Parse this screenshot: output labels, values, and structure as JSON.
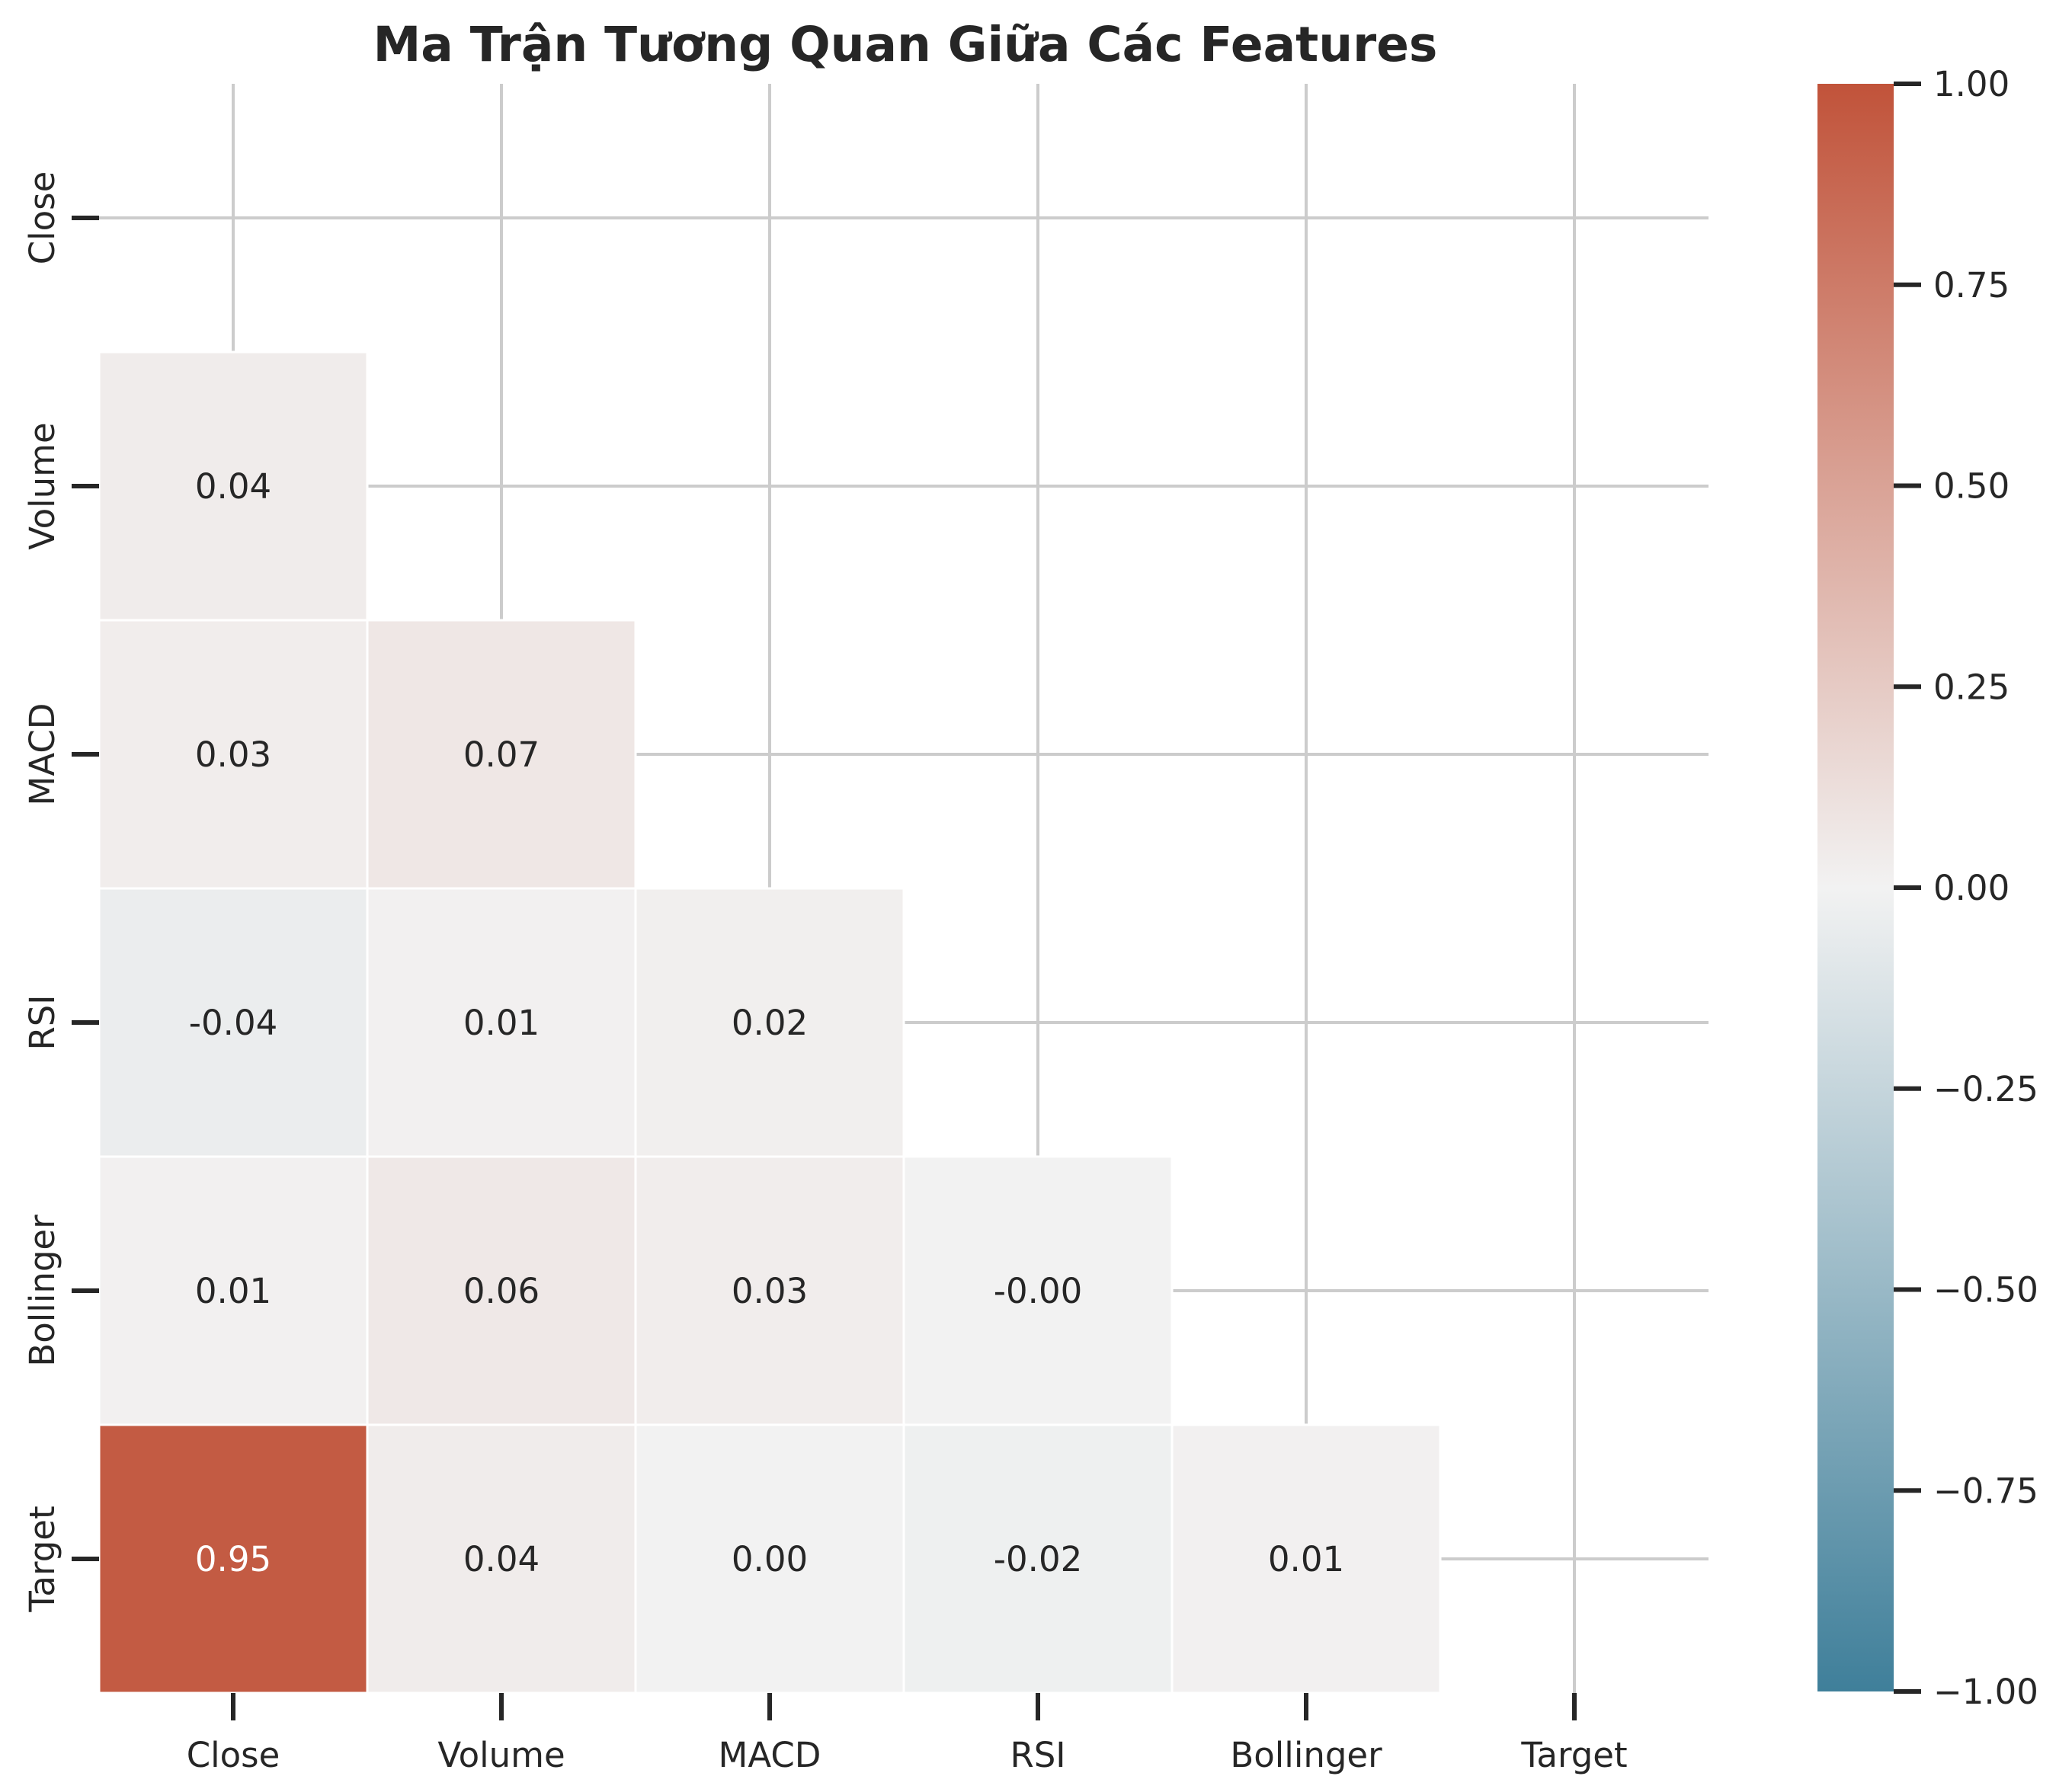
{
  "chart_data": {
    "type": "heatmap",
    "title": "Ma Trận Tương Quan Giữa Các Features",
    "categories": [
      "Close",
      "Volume",
      "MACD",
      "RSI",
      "Bollinger",
      "Target"
    ],
    "mask": "upper-triangle-including-diagonal",
    "cells": [
      {
        "row": "Volume",
        "col": "Close",
        "value": 0.04,
        "label": "0.04"
      },
      {
        "row": "MACD",
        "col": "Close",
        "value": 0.03,
        "label": "0.03"
      },
      {
        "row": "MACD",
        "col": "Volume",
        "value": 0.07,
        "label": "0.07"
      },
      {
        "row": "RSI",
        "col": "Close",
        "value": -0.04,
        "label": "-0.04"
      },
      {
        "row": "RSI",
        "col": "Volume",
        "value": 0.01,
        "label": "0.01"
      },
      {
        "row": "RSI",
        "col": "MACD",
        "value": 0.02,
        "label": "0.02"
      },
      {
        "row": "Bollinger",
        "col": "Close",
        "value": 0.01,
        "label": "0.01"
      },
      {
        "row": "Bollinger",
        "col": "Volume",
        "value": 0.06,
        "label": "0.06"
      },
      {
        "row": "Bollinger",
        "col": "MACD",
        "value": 0.03,
        "label": "0.03"
      },
      {
        "row": "Bollinger",
        "col": "RSI",
        "value": -0.0,
        "label": "-0.00"
      },
      {
        "row": "Target",
        "col": "Close",
        "value": 0.95,
        "label": "0.95"
      },
      {
        "row": "Target",
        "col": "Volume",
        "value": 0.04,
        "label": "0.04"
      },
      {
        "row": "Target",
        "col": "MACD",
        "value": 0.0,
        "label": "0.00"
      },
      {
        "row": "Target",
        "col": "RSI",
        "value": -0.02,
        "label": "-0.02"
      },
      {
        "row": "Target",
        "col": "Bollinger",
        "value": 0.01,
        "label": "0.01"
      }
    ],
    "colorbar": {
      "range": [
        -1,
        1
      ],
      "ticks": [
        1.0,
        0.75,
        0.5,
        0.25,
        0.0,
        -0.25,
        -0.5,
        -0.75,
        -1.0
      ],
      "tick_labels": [
        "1.00",
        "0.75",
        "0.50",
        "0.25",
        "0.00",
        "−0.25",
        "−0.50",
        "−0.75",
        "−1.00"
      ],
      "colors": {
        "negative": "#3f7f9a",
        "neutral": "#f2f2f2",
        "positive": "#c1533a"
      }
    },
    "grid": true
  }
}
